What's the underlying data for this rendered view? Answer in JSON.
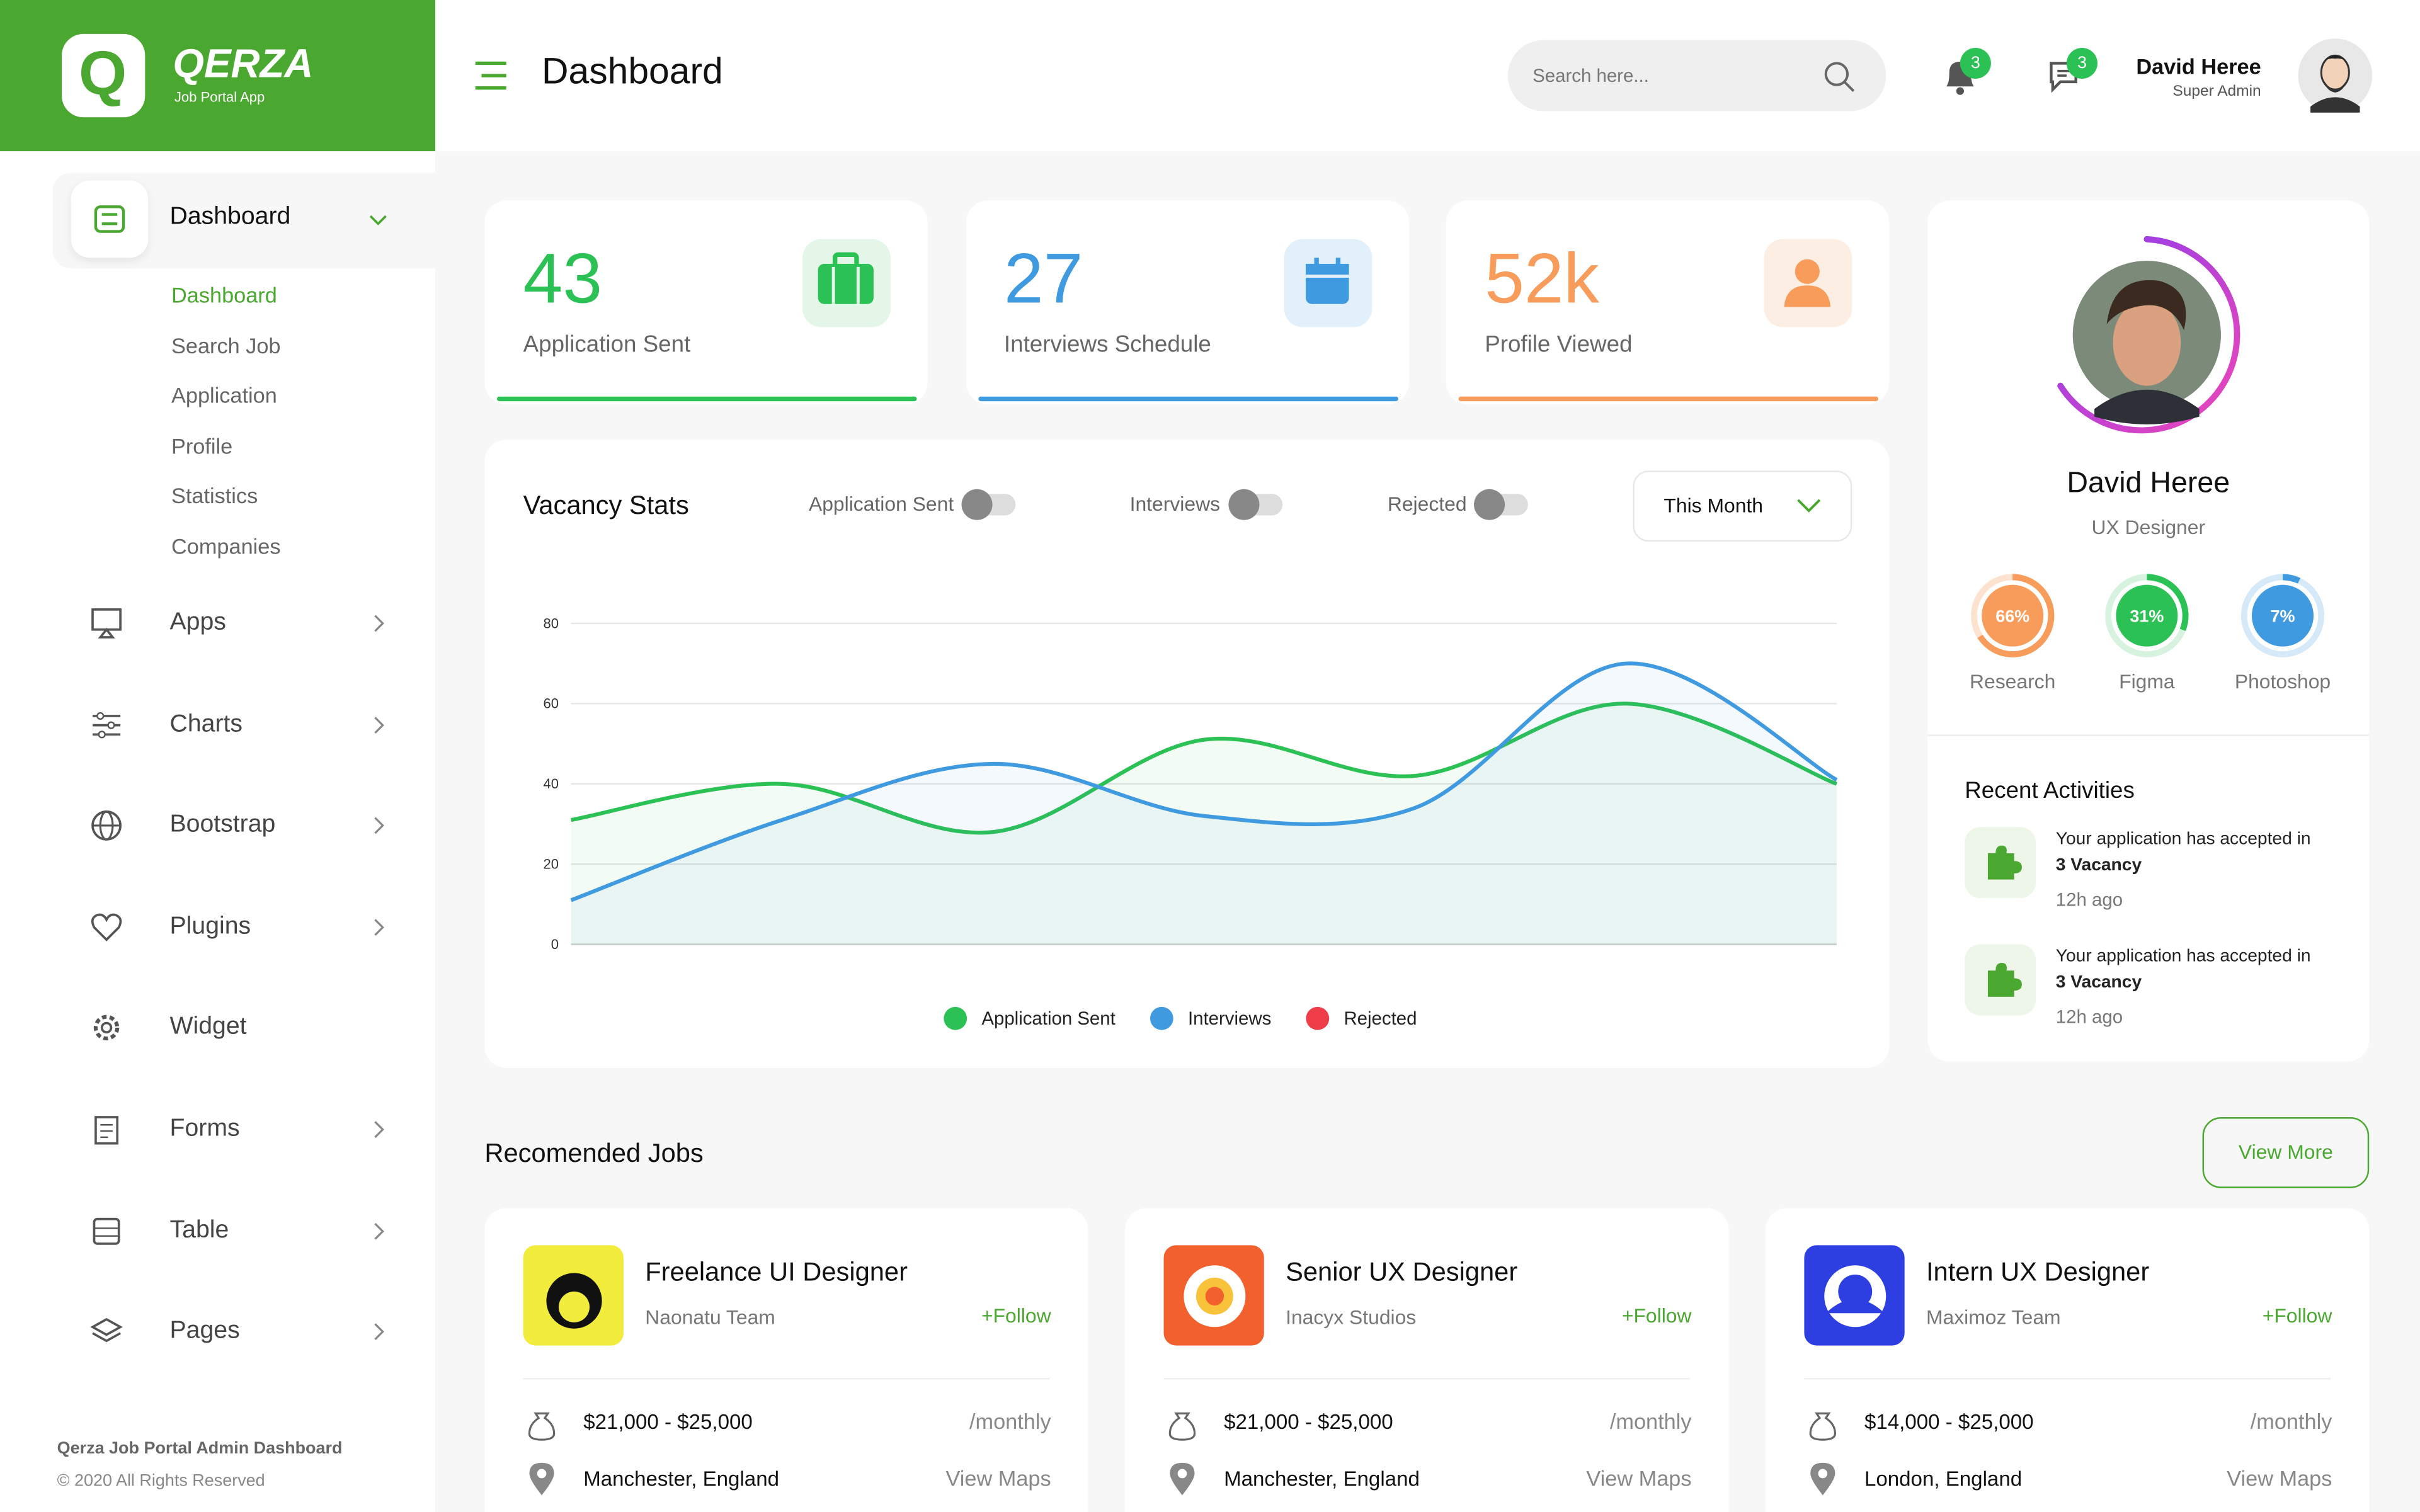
{
  "header": {
    "brand": "QERZA",
    "tagline": "Job Portal App",
    "page_title": "Dashboard",
    "search_placeholder": "Search here...",
    "notifications": 3,
    "messages": 3,
    "user_name": "David Heree",
    "user_role": "Super Admin"
  },
  "sidebar": {
    "active": {
      "label": "Dashboard",
      "submenu": [
        "Dashboard",
        "Search Job",
        "Application",
        "Profile",
        "Statistics",
        "Companies"
      ]
    },
    "items": [
      {
        "label": "Apps",
        "expandable": true
      },
      {
        "label": "Charts",
        "expandable": true
      },
      {
        "label": "Bootstrap",
        "expandable": true
      },
      {
        "label": "Plugins",
        "expandable": true
      },
      {
        "label": "Widget",
        "expandable": false
      },
      {
        "label": "Forms",
        "expandable": true
      },
      {
        "label": "Table",
        "expandable": true
      },
      {
        "label": "Pages",
        "expandable": true
      }
    ],
    "footer_title": "Qerza Job Portal Admin Dashboard",
    "footer_copy": "© 2020 All Rights Reserved"
  },
  "stats": [
    {
      "value": 43,
      "label": "Application Sent",
      "color": "#2bc155",
      "bg": "#e3f6e8"
    },
    {
      "value": 27,
      "label": "Interviews Schedule",
      "color": "#3f9ae0",
      "bg": "#e2f0fb"
    },
    {
      "value": "52k",
      "label": "Profile Viewed",
      "color": "#f79c5a",
      "bg": "#fdeee3"
    }
  ],
  "vacancy_chart": {
    "title": "Vacancy Stats",
    "toggles": [
      "Application Sent",
      "Interviews",
      "Rejected"
    ],
    "period": "This Month",
    "ylim": [
      0,
      80
    ],
    "yticks": [
      0,
      20,
      40,
      60,
      80
    ],
    "grid": true,
    "series": [
      {
        "name": "Application Sent",
        "color": "#2bc155",
        "values": [
          31,
          40,
          28,
          51,
          42,
          60,
          40
        ]
      },
      {
        "name": "Interviews",
        "color": "#3f9ae0",
        "values": [
          11,
          31,
          45,
          32,
          34,
          70,
          41
        ]
      },
      {
        "name": "Rejected",
        "color": "#ee3c48"
      }
    ]
  },
  "profile": {
    "name": "David Heree",
    "role": "UX Designer",
    "skills": [
      {
        "name": "Research",
        "value": 66,
        "value_label": "66%",
        "color": "#f79c5a",
        "track": "#fde3cf"
      },
      {
        "name": "Figma",
        "value": 31,
        "value_label": "31%",
        "color": "#2bc155",
        "track": "#d7f3df"
      },
      {
        "name": "Photoshop",
        "value": 7,
        "value_label": "7%",
        "color": "#3f9ae0",
        "track": "#d6e9f8"
      }
    ],
    "activities_title": "Recent Activities",
    "activities": [
      {
        "text": "Your application has accepted in",
        "bold": "3 Vacancy",
        "time": "12h ago"
      },
      {
        "text": "Your application has accepted in",
        "bold": "3 Vacancy",
        "time": "12h ago"
      }
    ]
  },
  "jobs": {
    "title": "Recomended Jobs",
    "view_more": "View More",
    "follow": "+Follow",
    "period": "/monthly",
    "maps": "View Maps",
    "items": [
      {
        "title": "Freelance UI Designer",
        "company": "Naonatu Team",
        "salary": "$21,000 - $25,000",
        "location": "Manchester, England",
        "logo_bg": "#f2ec3c"
      },
      {
        "title": "Senior UX Designer",
        "company": "Inacyx Studios",
        "salary": "$21,000 - $25,000",
        "location": "Manchester, England",
        "logo_bg": "#f2602e"
      },
      {
        "title": "Intern UX Designer",
        "company": "Maximoz Team",
        "salary": "$14,000 - $25,000",
        "location": "London, England",
        "logo_bg": "#2d3fe0"
      }
    ]
  }
}
